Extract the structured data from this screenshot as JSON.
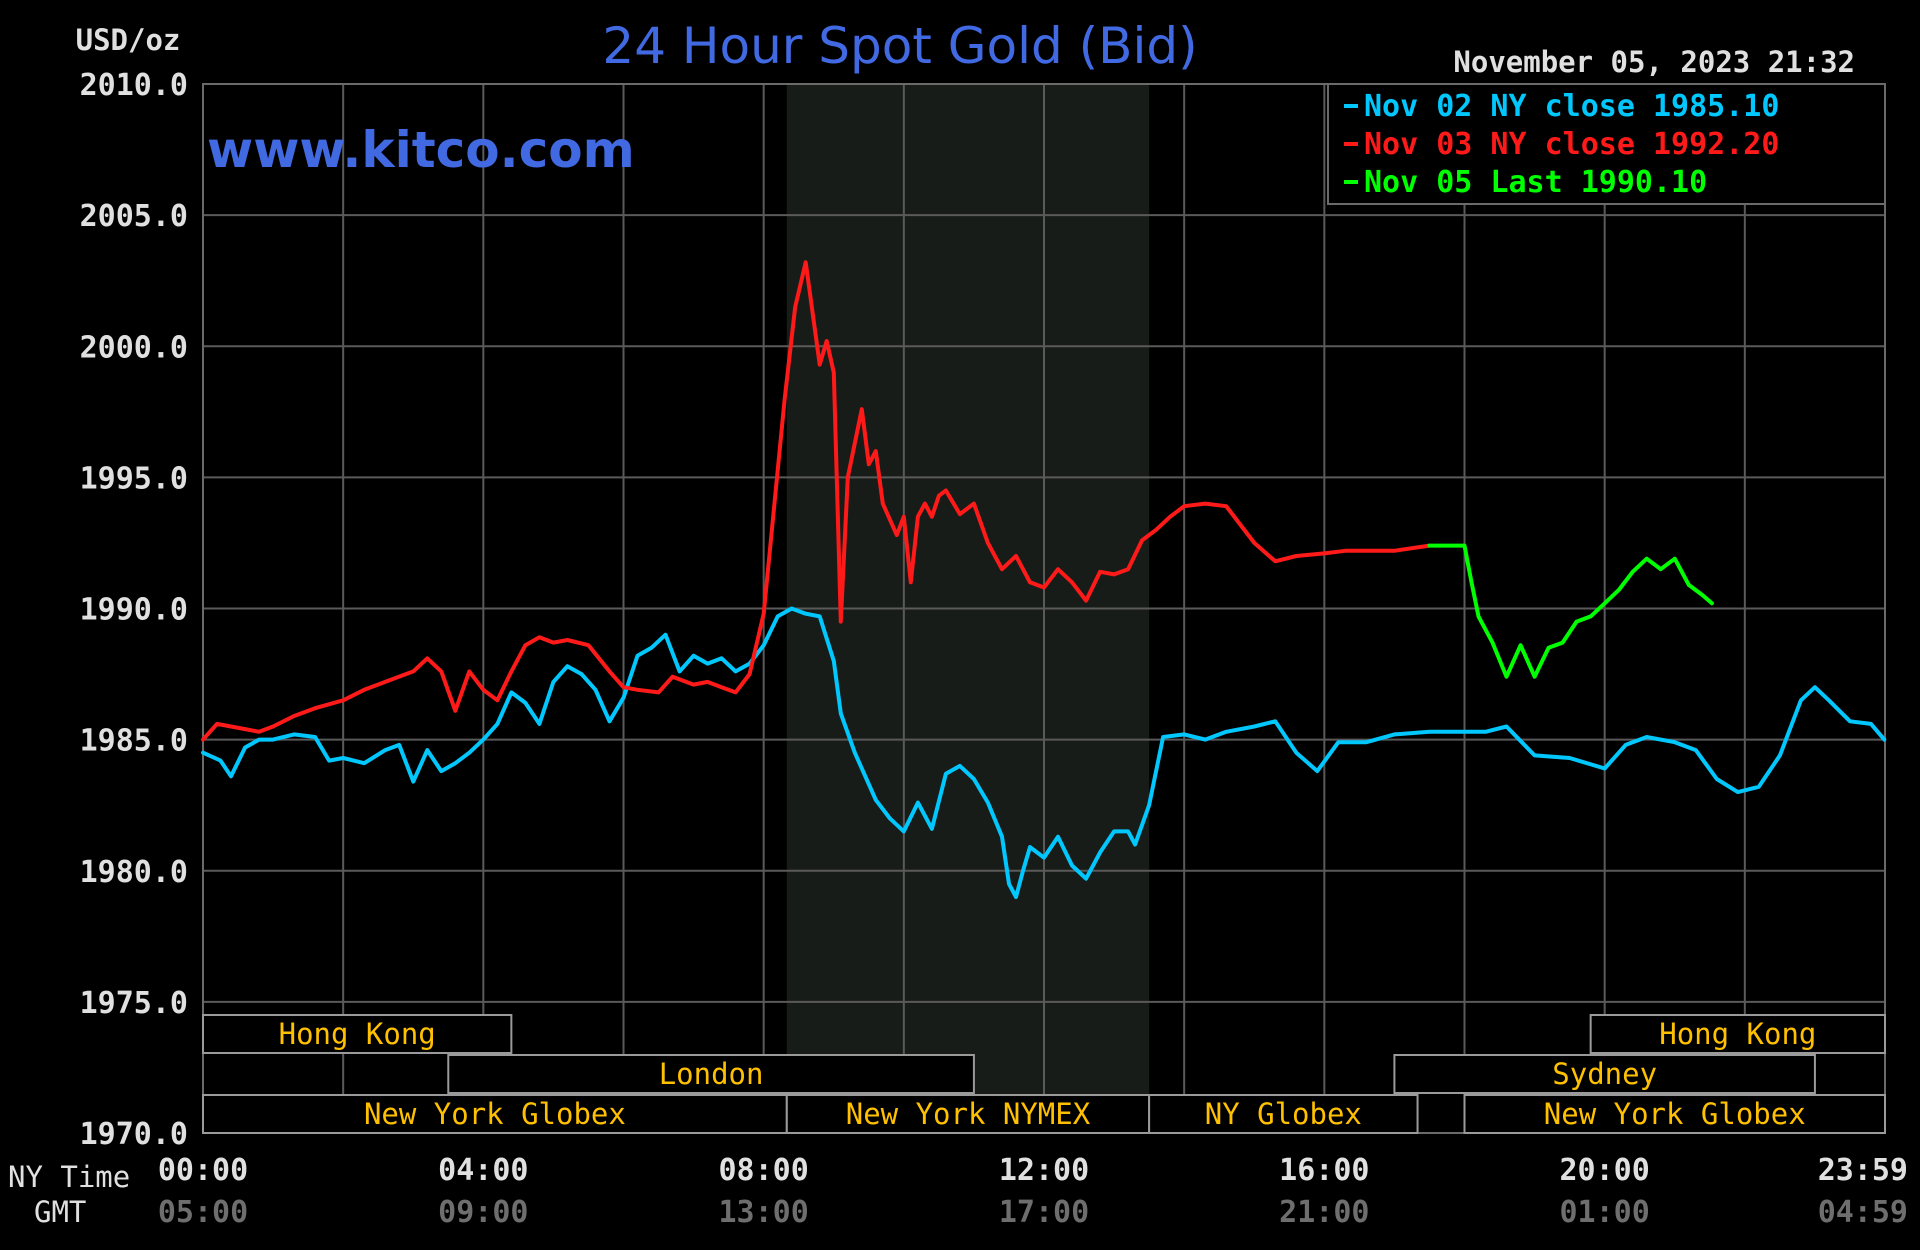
{
  "chart_data": {
    "type": "line",
    "title": "24 Hour Spot Gold (Bid)",
    "watermark": "www.kitco.com",
    "ylabel": "USD/oz",
    "timestamp": "November 05, 2023 21:32",
    "ylim": [
      1970,
      2010
    ],
    "xlim_hours": [
      0,
      24
    ],
    "y_ticks": [
      "2010.0",
      "2005.0",
      "2000.0",
      "1995.0",
      "1990.0",
      "1985.0",
      "1980.0",
      "1975.0",
      "1970.0"
    ],
    "x_axis_rows": [
      {
        "label": "NY Time",
        "ticks": [
          "00:00",
          "04:00",
          "08:00",
          "12:00",
          "16:00",
          "20:00",
          "23:59"
        ]
      },
      {
        "label": "GMT",
        "ticks": [
          "05:00",
          "09:00",
          "13:00",
          "17:00",
          "21:00",
          "01:00",
          "04:59"
        ]
      }
    ],
    "legend": [
      {
        "text": "Nov 02 NY close 1985.10",
        "color": "#00c8ff"
      },
      {
        "text": "Nov 03 NY close 1992.20",
        "color": "#ff1a1a"
      },
      {
        "text": "Nov 05 Last 1990.10",
        "color": "#00ff00"
      }
    ],
    "nymex_session_hours": [
      8.33,
      13.5
    ],
    "series": [
      {
        "color": "#00c8ff",
        "x": [
          0,
          0.25,
          0.4,
          0.6,
          0.8,
          1.0,
          1.3,
          1.6,
          1.8,
          2.0,
          2.3,
          2.6,
          2.8,
          3.0,
          3.2,
          3.4,
          3.6,
          3.8,
          4.0,
          4.2,
          4.4,
          4.6,
          4.8,
          5.0,
          5.2,
          5.4,
          5.6,
          5.8,
          6.0,
          6.2,
          6.4,
          6.6,
          6.8,
          7.0,
          7.2,
          7.4,
          7.6,
          7.8,
          8.0,
          8.2,
          8.4,
          8.6,
          8.8,
          9.0,
          9.1,
          9.3,
          9.6,
          9.8,
          10.0,
          10.2,
          10.4,
          10.6,
          10.8,
          11.0,
          11.2,
          11.4,
          11.5,
          11.6,
          11.7,
          11.8,
          12.0,
          12.2,
          12.4,
          12.6,
          12.8,
          13.0,
          13.2,
          13.3,
          13.5,
          13.7,
          14.0,
          14.3,
          14.6,
          15.0,
          15.3,
          15.6,
          15.9,
          16.2,
          16.6,
          17.0,
          17.5,
          18.0,
          18.3,
          18.6,
          19.0,
          19.5,
          20.0,
          20.3,
          20.6,
          21.0,
          21.3,
          21.6,
          21.9,
          22.2,
          22.5,
          22.8,
          23.0,
          23.2,
          23.5,
          23.8,
          23.99
        ],
        "values": [
          1984.5,
          1984.2,
          1983.6,
          1984.7,
          1985.0,
          1985.0,
          1985.2,
          1985.1,
          1984.2,
          1984.3,
          1984.1,
          1984.6,
          1984.8,
          1983.4,
          1984.6,
          1983.8,
          1984.1,
          1984.5,
          1985.0,
          1985.6,
          1986.8,
          1986.4,
          1985.6,
          1987.2,
          1987.8,
          1987.5,
          1986.9,
          1985.7,
          1986.6,
          1988.2,
          1988.5,
          1989.0,
          1987.6,
          1988.2,
          1987.9,
          1988.1,
          1987.6,
          1987.9,
          1988.6,
          1989.7,
          1990.0,
          1989.8,
          1989.7,
          1988.0,
          1986.0,
          1984.5,
          1982.7,
          1982.0,
          1981.5,
          1982.6,
          1981.6,
          1983.7,
          1984.0,
          1983.5,
          1982.6,
          1981.3,
          1979.5,
          1979.0,
          1980.0,
          1980.9,
          1980.5,
          1981.3,
          1980.2,
          1979.7,
          1980.7,
          1981.5,
          1981.5,
          1981.0,
          1982.5,
          1985.1,
          1985.2,
          1985.0,
          1985.3,
          1985.5,
          1985.7,
          1984.5,
          1983.8,
          1984.9,
          1984.9,
          1985.2,
          1985.3,
          1985.3,
          1985.3,
          1985.5,
          1984.4,
          1984.3,
          1983.9,
          1984.8,
          1985.1,
          1984.9,
          1984.6,
          1983.5,
          1983.0,
          1983.2,
          1984.4,
          1986.5,
          1987.0,
          1986.5,
          1985.7,
          1985.6,
          1985.0
        ]
      },
      {
        "color": "#ff1a1a",
        "x": [
          0,
          0.2,
          0.4,
          0.6,
          0.8,
          1.0,
          1.3,
          1.6,
          2.0,
          2.3,
          2.6,
          3.0,
          3.2,
          3.4,
          3.6,
          3.8,
          4.0,
          4.2,
          4.4,
          4.6,
          4.8,
          5.0,
          5.2,
          5.5,
          5.8,
          6.0,
          6.2,
          6.5,
          6.7,
          7.0,
          7.2,
          7.4,
          7.6,
          7.8,
          8.0,
          8.3,
          8.45,
          8.6,
          8.8,
          8.9,
          9.0,
          9.1,
          9.2,
          9.4,
          9.5,
          9.6,
          9.7,
          9.8,
          9.9,
          10.0,
          10.1,
          10.2,
          10.3,
          10.4,
          10.5,
          10.6,
          10.8,
          11.0,
          11.2,
          11.4,
          11.6,
          11.8,
          12.0,
          12.2,
          12.4,
          12.6,
          12.8,
          13.0,
          13.2,
          13.4,
          13.6,
          13.8,
          14.0,
          14.3,
          14.6,
          15.0,
          15.3,
          15.6,
          16.0,
          16.3,
          16.6,
          17.0,
          17.5
        ],
        "values": [
          1985.0,
          1985.6,
          1985.5,
          1985.4,
          1985.3,
          1985.5,
          1985.9,
          1986.2,
          1986.5,
          1986.9,
          1987.2,
          1987.6,
          1988.1,
          1987.6,
          1986.1,
          1987.6,
          1986.9,
          1986.5,
          1987.6,
          1988.6,
          1988.9,
          1988.7,
          1988.8,
          1988.6,
          1987.6,
          1987.0,
          1986.9,
          1986.8,
          1987.4,
          1987.1,
          1987.2,
          1987.0,
          1986.8,
          1987.5,
          1989.8,
          1998.0,
          2001.5,
          2003.2,
          1999.3,
          2000.2,
          1999.0,
          1989.5,
          1995.0,
          1997.6,
          1995.5,
          1996.0,
          1994.0,
          1993.4,
          1992.8,
          1993.5,
          1991.0,
          1993.5,
          1994.0,
          1993.5,
          1994.3,
          1994.5,
          1993.6,
          1994.0,
          1992.5,
          1991.5,
          1992.0,
          1991.0,
          1990.8,
          1991.5,
          1991.0,
          1990.3,
          1991.4,
          1991.3,
          1991.5,
          1992.6,
          1993.0,
          1993.5,
          1993.9,
          1994.0,
          1993.9,
          1992.5,
          1991.8,
          1992.0,
          1992.1,
          1992.2,
          1992.2,
          1992.2,
          1992.4
        ]
      },
      {
        "color": "#00ff00",
        "x": [
          17.5,
          17.8,
          18.0,
          18.1,
          18.2,
          18.4,
          18.6,
          18.8,
          19.0,
          19.2,
          19.4,
          19.6,
          19.8,
          20.0,
          20.2,
          20.4,
          20.6,
          20.8,
          21.0,
          21.2,
          21.4,
          21.53
        ],
        "values": [
          1992.4,
          1992.4,
          1992.4,
          1991.0,
          1989.7,
          1988.7,
          1987.4,
          1988.6,
          1987.4,
          1988.5,
          1988.7,
          1989.5,
          1989.7,
          1990.2,
          1990.7,
          1991.4,
          1991.9,
          1991.5,
          1991.9,
          1990.9,
          1990.5,
          1990.2
        ]
      }
    ],
    "sessions": [
      {
        "label": "Hong Kong",
        "row": 0,
        "start_hour": 0,
        "end_hour": 4.4
      },
      {
        "label": "Hong Kong",
        "row": 0,
        "start_hour": 19.8,
        "end_hour": 24
      },
      {
        "label": "London",
        "row": 1,
        "start_hour": 3.5,
        "end_hour": 11.0
      },
      {
        "label": "Sydney",
        "row": 1,
        "start_hour": 17.0,
        "end_hour": 23.0
      },
      {
        "label": "New York Globex",
        "row": 2,
        "start_hour": 0,
        "end_hour": 8.33
      },
      {
        "label": "New York NYMEX",
        "row": 2,
        "start_hour": 8.33,
        "end_hour": 13.5
      },
      {
        "label": "NY Globex",
        "row": 2,
        "start_hour": 13.5,
        "end_hour": 17.33
      },
      {
        "label": "New York Globex",
        "row": 2,
        "start_hour": 18.0,
        "end_hour": 24
      }
    ]
  }
}
